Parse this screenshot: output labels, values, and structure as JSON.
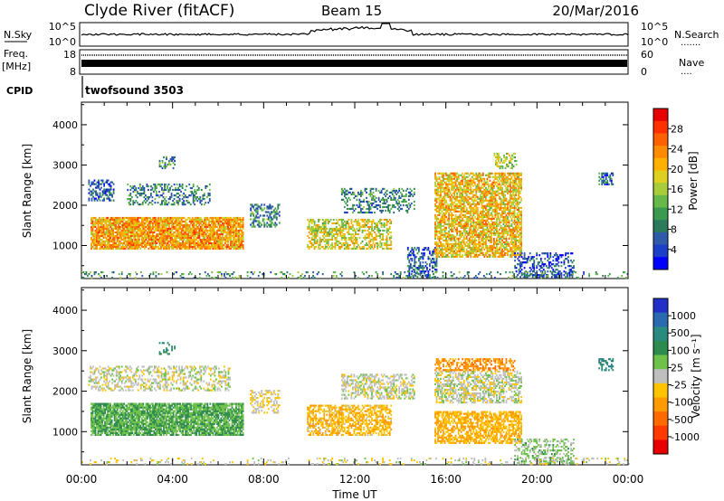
{
  "header": {
    "station": "Clyde River (fitACF)",
    "beam": "Beam 15",
    "date": "20/Mar/2016"
  },
  "panels": {
    "nsky": {
      "left_label": "N.Sky",
      "left_ticks": [
        "10^5",
        "10^0"
      ],
      "right_label": "N.Search",
      "right_ticks": [
        "10^5",
        "10^0"
      ],
      "right_dots": "......."
    },
    "freq": {
      "left_label_1": "Freq.",
      "left_label_2": "[MHz]",
      "left_ticks": [
        "18",
        "8"
      ],
      "right_label": "Nave",
      "right_ticks": [
        "60",
        "0"
      ],
      "right_dots": "...."
    },
    "cpid": {
      "label": "CPID",
      "program": "twofsound 3503"
    }
  },
  "chart_data": [
    {
      "type": "heatmap",
      "parameter": "Power",
      "ylabel": "Slant Range [km]",
      "ylim": [
        180,
        4560
      ],
      "yticks": [
        1000,
        2000,
        3000,
        4000
      ],
      "xlim_hours": [
        0,
        24
      ],
      "colorbar": {
        "label": "Power [dB]",
        "range": [
          0,
          32
        ],
        "ticks": [
          "4",
          "8",
          "12",
          "16",
          "20",
          "24",
          "28"
        ],
        "colors": [
          "#0000ff",
          "#1c3fc8",
          "#2e5aa8",
          "#2b7a5a",
          "#3c9a50",
          "#66b84a",
          "#a8cc3a",
          "#ddd020",
          "#ffb000",
          "#ff8c00",
          "#ff6000",
          "#ff3000",
          "#e60000"
        ]
      },
      "regions": [
        {
          "t": [
            0.4,
            7.1
          ],
          "r": [
            900,
            1700
          ],
          "mean_db": 22,
          "density": 0.85
        },
        {
          "t": [
            0.3,
            1.4
          ],
          "r": [
            2100,
            2600
          ],
          "mean_db": 6,
          "density": 0.5
        },
        {
          "t": [
            2.0,
            5.6
          ],
          "r": [
            2000,
            2500
          ],
          "mean_db": 9,
          "density": 0.35
        },
        {
          "t": [
            3.4,
            4.1
          ],
          "r": [
            2900,
            3200
          ],
          "mean_db": 10,
          "density": 0.3
        },
        {
          "t": [
            7.4,
            8.7
          ],
          "r": [
            1450,
            2000
          ],
          "mean_db": 9,
          "density": 0.45
        },
        {
          "t": [
            9.9,
            13.6
          ],
          "r": [
            900,
            1650
          ],
          "mean_db": 18,
          "density": 0.55
        },
        {
          "t": [
            11.4,
            14.6
          ],
          "r": [
            1800,
            2400
          ],
          "mean_db": 9,
          "density": 0.35
        },
        {
          "t": [
            14.3,
            15.6
          ],
          "r": [
            200,
            950
          ],
          "mean_db": 6,
          "density": 0.45
        },
        {
          "t": [
            15.5,
            19.3
          ],
          "r": [
            700,
            2800
          ],
          "mean_db": 20,
          "density": 0.7
        },
        {
          "t": [
            19.0,
            21.6
          ],
          "r": [
            200,
            800
          ],
          "mean_db": 5,
          "density": 0.4
        },
        {
          "t": [
            22.7,
            23.3
          ],
          "r": [
            2500,
            2800
          ],
          "mean_db": 7,
          "density": 0.5
        },
        {
          "t": [
            18.1,
            19.1
          ],
          "r": [
            2900,
            3300
          ],
          "mean_db": 16,
          "density": 0.4
        },
        {
          "t": [
            0.0,
            24.0
          ],
          "r": [
            180,
            320
          ],
          "mean_db": 10,
          "density": 0.15
        }
      ]
    },
    {
      "type": "heatmap",
      "parameter": "Velocity",
      "ylabel": "Slant Range [km]",
      "ylim": [
        180,
        4560
      ],
      "yticks": [
        1000,
        2000,
        3000,
        4000
      ],
      "xlim_hours": [
        0,
        24
      ],
      "xticks": [
        "00:00",
        "04:00",
        "08:00",
        "12:00",
        "16:00",
        "20:00",
        "00:00"
      ],
      "xlabel": "Time UT",
      "colorbar": {
        "label": "Velocity [m s⁻¹]",
        "range": [
          -1500,
          1500
        ],
        "ticks": [
          "1000",
          "500",
          "100",
          "25",
          "-25",
          "-100",
          "-500",
          "-1000"
        ],
        "colors": [
          "#2230c8",
          "#2a6ab0",
          "#2a8a80",
          "#2f8a4e",
          "#6ec24a",
          "#bfbfbf",
          "#ffc400",
          "#ff9a00",
          "#ff6a00",
          "#ff3a00",
          "#e80000"
        ]
      },
      "regions": [
        {
          "t": [
            0.4,
            7.1
          ],
          "r": [
            900,
            1700
          ],
          "mean_v": 380,
          "density": 0.85
        },
        {
          "t": [
            0.3,
            6.5
          ],
          "r": [
            2000,
            2600
          ],
          "mean_v": 0,
          "density": 0.4
        },
        {
          "t": [
            3.4,
            4.1
          ],
          "r": [
            2900,
            3200
          ],
          "mean_v": 700,
          "density": 0.3
        },
        {
          "t": [
            7.4,
            8.7
          ],
          "r": [
            1450,
            2000
          ],
          "mean_v": -150,
          "density": 0.4
        },
        {
          "t": [
            9.9,
            13.6
          ],
          "r": [
            900,
            1650
          ],
          "mean_v": -350,
          "density": 0.6
        },
        {
          "t": [
            11.4,
            14.6
          ],
          "r": [
            1800,
            2400
          ],
          "mean_v": 0,
          "density": 0.45
        },
        {
          "t": [
            15.5,
            19.3
          ],
          "r": [
            1700,
            2500
          ],
          "mean_v": 0,
          "density": 0.55
        },
        {
          "t": [
            15.5,
            19.3
          ],
          "r": [
            700,
            1500
          ],
          "mean_v": -400,
          "density": 0.65
        },
        {
          "t": [
            15.5,
            19.0
          ],
          "r": [
            2500,
            2800
          ],
          "mean_v": -600,
          "density": 0.5
        },
        {
          "t": [
            19.0,
            21.6
          ],
          "r": [
            200,
            800
          ],
          "mean_v": 200,
          "density": 0.4
        },
        {
          "t": [
            22.7,
            23.3
          ],
          "r": [
            2500,
            2800
          ],
          "mean_v": 800,
          "density": 0.5
        },
        {
          "t": [
            0.0,
            24.0
          ],
          "r": [
            180,
            320
          ],
          "mean_v": -60,
          "density": 0.15
        }
      ]
    }
  ]
}
